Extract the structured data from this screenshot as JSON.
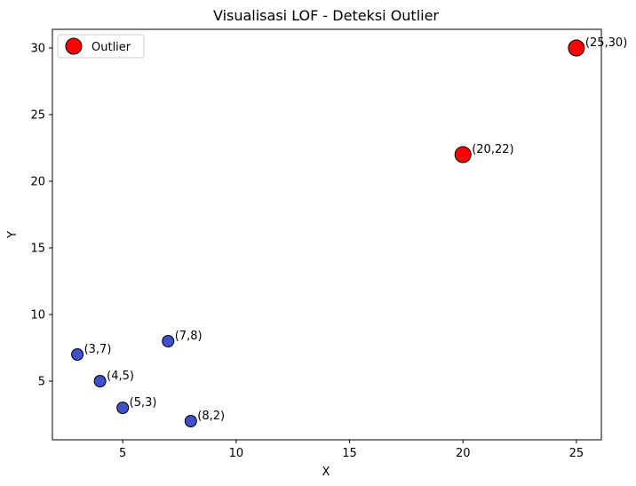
{
  "chart_data": {
    "type": "scatter",
    "title": "Visualisasi LOF - Deteksi Outlier",
    "xlabel": "X",
    "ylabel": "Y",
    "xlim": [
      1.9,
      26.1
    ],
    "ylim": [
      0.6,
      31.4
    ],
    "xticks": [
      5,
      10,
      15,
      20,
      25
    ],
    "yticks": [
      5,
      10,
      15,
      20,
      25,
      30
    ],
    "grid": false,
    "legend_position": "top-left",
    "series": [
      {
        "name": "Outlier",
        "role": "outlier",
        "color": "#ff0000",
        "edge_color": "#000000",
        "points": [
          {
            "x": 20,
            "y": 22,
            "label": "(20,22)"
          },
          {
            "x": 25,
            "y": 30,
            "label": "(25,30)"
          }
        ]
      },
      {
        "role": "inlier",
        "color": "#4050c8",
        "edge_color": "#000000",
        "points": [
          {
            "x": 3,
            "y": 7,
            "label": "(3,7)"
          },
          {
            "x": 4,
            "y": 5,
            "label": "(4,5)"
          },
          {
            "x": 5,
            "y": 3,
            "label": "(5,3)"
          },
          {
            "x": 7,
            "y": 8,
            "label": "(7,8)"
          },
          {
            "x": 8,
            "y": 2,
            "label": "(8,2)"
          }
        ]
      }
    ]
  }
}
